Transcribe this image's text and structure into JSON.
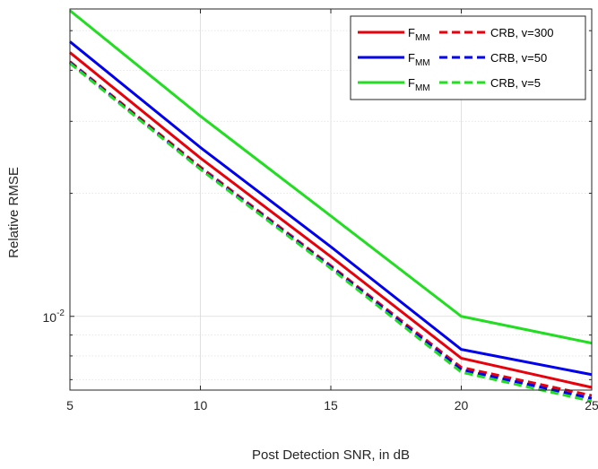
{
  "chart_data": {
    "type": "line",
    "title": "",
    "xlabel": "Post Detection SNR, in dB",
    "ylabel": "Relative RMSE",
    "xlim": [
      5,
      25
    ],
    "ylim": [
      0.0066,
      0.0565
    ],
    "yscale": "log",
    "grid": true,
    "legend_position": "top-right",
    "xticks": [
      5,
      10,
      15,
      20,
      25
    ],
    "xtick_labels": [
      "5",
      "10",
      "15",
      "20",
      "25"
    ],
    "ytick_label": {
      "base": "10",
      "exponent": "-2",
      "value": 0.01
    },
    "x": [
      5,
      10,
      15,
      20,
      25
    ],
    "series": [
      {
        "group": "v=300",
        "kind": "F_MM",
        "color": "#e8000b",
        "dash": "solid",
        "values": [
          0.0442,
          0.0244,
          0.014,
          0.0079,
          0.0067
        ]
      },
      {
        "group": "v=300",
        "kind": "CRB",
        "color": "#e8000b",
        "dash": "dashed",
        "values": [
          0.042,
          0.0232,
          0.0133,
          0.0075,
          0.0064
        ]
      },
      {
        "group": "v=50",
        "kind": "F_MM",
        "color": "#0000ee",
        "dash": "solid",
        "values": [
          0.047,
          0.0259,
          0.0148,
          0.0083,
          0.0072
        ]
      },
      {
        "group": "v=50",
        "kind": "CRB",
        "color": "#0000ee",
        "dash": "dashed",
        "values": [
          0.0418,
          0.023,
          0.0132,
          0.0074,
          0.0063
        ]
      },
      {
        "group": "v=5",
        "kind": "F_MM",
        "color": "#22dd22",
        "dash": "solid",
        "values": [
          0.056,
          0.0309,
          0.0176,
          0.01,
          0.0086
        ]
      },
      {
        "group": "v=5",
        "kind": "CRB",
        "color": "#22dd22",
        "dash": "dashed",
        "values": [
          0.0416,
          0.0229,
          0.0131,
          0.0073,
          0.0062
        ]
      }
    ],
    "legend": [
      {
        "label_main": "F",
        "label_sub": "MM",
        "crb_label": "CRB, v=300",
        "color": "#e8000b"
      },
      {
        "label_main": "F",
        "label_sub": "MM",
        "crb_label": "CRB, v=50",
        "color": "#0000ee"
      },
      {
        "label_main": "F",
        "label_sub": "MM",
        "crb_label": "CRB, v=5",
        "color": "#22dd22"
      }
    ]
  }
}
